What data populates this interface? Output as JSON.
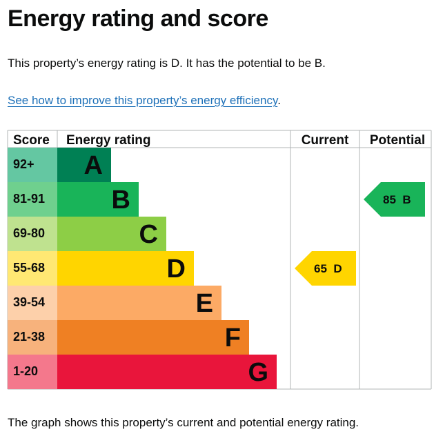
{
  "title": "Energy rating and score",
  "summary": "This property’s energy rating is D. It has the potential to be B.",
  "link": {
    "text": "See how to improve this property’s energy efficiency",
    "suffix": "."
  },
  "footer": "The graph shows this property’s current and potential energy rating.",
  "chart_data": {
    "type": "bar",
    "headers": {
      "score": "Score",
      "rating": "Energy rating",
      "current": "Current",
      "potential": "Potential"
    },
    "bands": [
      {
        "range": "92+",
        "letter": "A",
        "color": "#008054",
        "score_color": "#64c7a2"
      },
      {
        "range": "81-91",
        "letter": "B",
        "color": "#19b459",
        "score_color": "#6fd08e"
      },
      {
        "range": "69-80",
        "letter": "C",
        "color": "#8dce46",
        "score_color": "#bfe28f"
      },
      {
        "range": "55-68",
        "letter": "D",
        "color": "#ffd500",
        "score_color": "#ffe873"
      },
      {
        "range": "39-54",
        "letter": "E",
        "color": "#fcaa65",
        "score_color": "#fdd0aa"
      },
      {
        "range": "21-38",
        "letter": "F",
        "color": "#ef8023",
        "score_color": "#f7b27c"
      },
      {
        "range": "1-20",
        "letter": "G",
        "color": "#e9153b",
        "score_color": "#f4788c"
      }
    ],
    "current": {
      "score": 65,
      "letter": "D",
      "label": "65  D",
      "color": "#ffd500"
    },
    "potential": {
      "score": 85,
      "letter": "B",
      "label": "85  B",
      "color": "#19b459"
    }
  }
}
